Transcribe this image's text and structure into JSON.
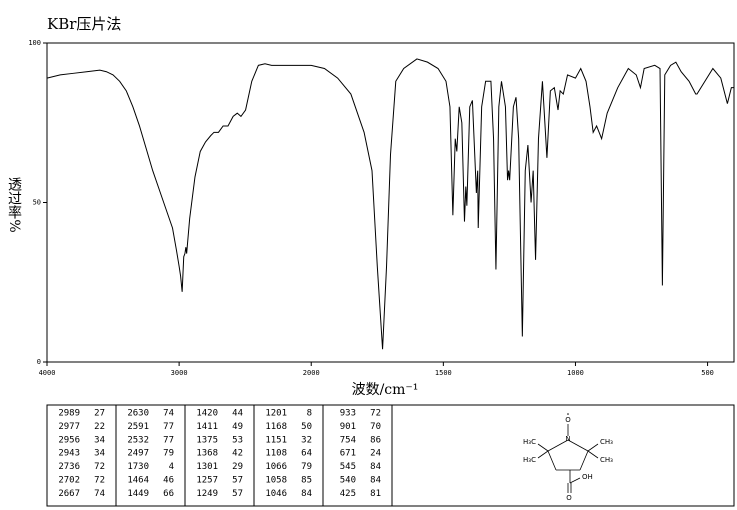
{
  "chart_data": {
    "type": "line",
    "title": "KBr压片法",
    "xlabel": "波数/cm⁻¹",
    "ylabel": "透过率%",
    "x": [
      4000,
      3900,
      3800,
      3700,
      3600,
      3550,
      3500,
      3450,
      3400,
      3350,
      3300,
      3250,
      3200,
      3150,
      3100,
      3050,
      3020,
      3000,
      2989,
      2977,
      2965,
      2956,
      2949,
      2943,
      2920,
      2880,
      2840,
      2800,
      2760,
      2736,
      2702,
      2667,
      2630,
      2591,
      2560,
      2532,
      2497,
      2450,
      2400,
      2350,
      2300,
      2200,
      2100,
      2000,
      1950,
      1900,
      1850,
      1800,
      1770,
      1750,
      1730,
      1715,
      1700,
      1680,
      1650,
      1600,
      1560,
      1520,
      1490,
      1475,
      1464,
      1455,
      1449,
      1440,
      1430,
      1420,
      1415,
      1411,
      1400,
      1390,
      1375,
      1370,
      1368,
      1355,
      1340,
      1320,
      1310,
      1301,
      1290,
      1280,
      1265,
      1257,
      1253,
      1249,
      1235,
      1225,
      1215,
      1201,
      1190,
      1180,
      1168,
      1160,
      1151,
      1140,
      1125,
      1108,
      1095,
      1080,
      1066,
      1058,
      1046,
      1030,
      1000,
      980,
      960,
      945,
      933,
      920,
      901,
      880,
      860,
      840,
      800,
      770,
      754,
      740,
      700,
      680,
      671,
      662,
      640,
      620,
      600,
      570,
      545,
      540,
      510,
      480,
      450,
      425,
      410,
      400
    ],
    "values": [
      89,
      90,
      90.5,
      91,
      91.5,
      91,
      90,
      88,
      85,
      80,
      74,
      67,
      60,
      54,
      48,
      42,
      35,
      30,
      27,
      22,
      33,
      34,
      36,
      34,
      45,
      58,
      66,
      69,
      71,
      72,
      72,
      74,
      74,
      77,
      78,
      77,
      79,
      88,
      93,
      93.5,
      93,
      93,
      93,
      93,
      92,
      89,
      84,
      72,
      60,
      30,
      4,
      30,
      65,
      88,
      92,
      95,
      94,
      92,
      88,
      80,
      46,
      70,
      66,
      80,
      75,
      44,
      55,
      49,
      80,
      82,
      53,
      60,
      42,
      80,
      88,
      88,
      70,
      29,
      80,
      88,
      80,
      57,
      60,
      57,
      80,
      83,
      70,
      8,
      60,
      68,
      50,
      60,
      32,
      70,
      88,
      64,
      85,
      86,
      79,
      85,
      84,
      90,
      89,
      92,
      88,
      80,
      72,
      74,
      70,
      78,
      82,
      86,
      92,
      90,
      86,
      92,
      93,
      92,
      24,
      90,
      93,
      94,
      91,
      88,
      84,
      84,
      88,
      92,
      89,
      81,
      86,
      86
    ],
    "color": "#000000",
    "xlim": [
      4000,
      400
    ],
    "x_scale_break": 2000,
    "xticks": [
      4000,
      3000,
      2000,
      1500,
      1000,
      500
    ],
    "ylim": [
      0,
      100
    ],
    "yticks": [
      0,
      50,
      100
    ]
  },
  "peak_table": {
    "columns": [
      [
        [
          2989,
          27
        ],
        [
          2977,
          22
        ],
        [
          2956,
          34
        ],
        [
          2943,
          34
        ],
        [
          2736,
          72
        ],
        [
          2702,
          72
        ],
        [
          2667,
          74
        ]
      ],
      [
        [
          2630,
          74
        ],
        [
          2591,
          77
        ],
        [
          2532,
          77
        ],
        [
          2497,
          79
        ],
        [
          1730,
          4
        ],
        [
          1464,
          46
        ],
        [
          1449,
          66
        ]
      ],
      [
        [
          1420,
          44
        ],
        [
          1411,
          49
        ],
        [
          1375,
          53
        ],
        [
          1368,
          42
        ],
        [
          1301,
          29
        ],
        [
          1257,
          57
        ],
        [
          1249,
          57
        ]
      ],
      [
        [
          1201,
          8
        ],
        [
          1168,
          50
        ],
        [
          1151,
          32
        ],
        [
          1108,
          64
        ],
        [
          1066,
          79
        ],
        [
          1058,
          85
        ],
        [
          1046,
          84
        ]
      ],
      [
        [
          933,
          72
        ],
        [
          901,
          70
        ],
        [
          754,
          86
        ],
        [
          671,
          24
        ],
        [
          545,
          84
        ],
        [
          540,
          84
        ],
        [
          425,
          81
        ]
      ]
    ]
  },
  "structure": {
    "radical_oxygen": "O",
    "nitrogen": "N",
    "methyl_top_left": "H₃C",
    "methyl_bottom_left": "H₃C",
    "methyl_top_right": "CH₃",
    "methyl_bottom_right": "CH₃",
    "hydroxyl": "OH",
    "carbonyl_oxygen": "O"
  }
}
